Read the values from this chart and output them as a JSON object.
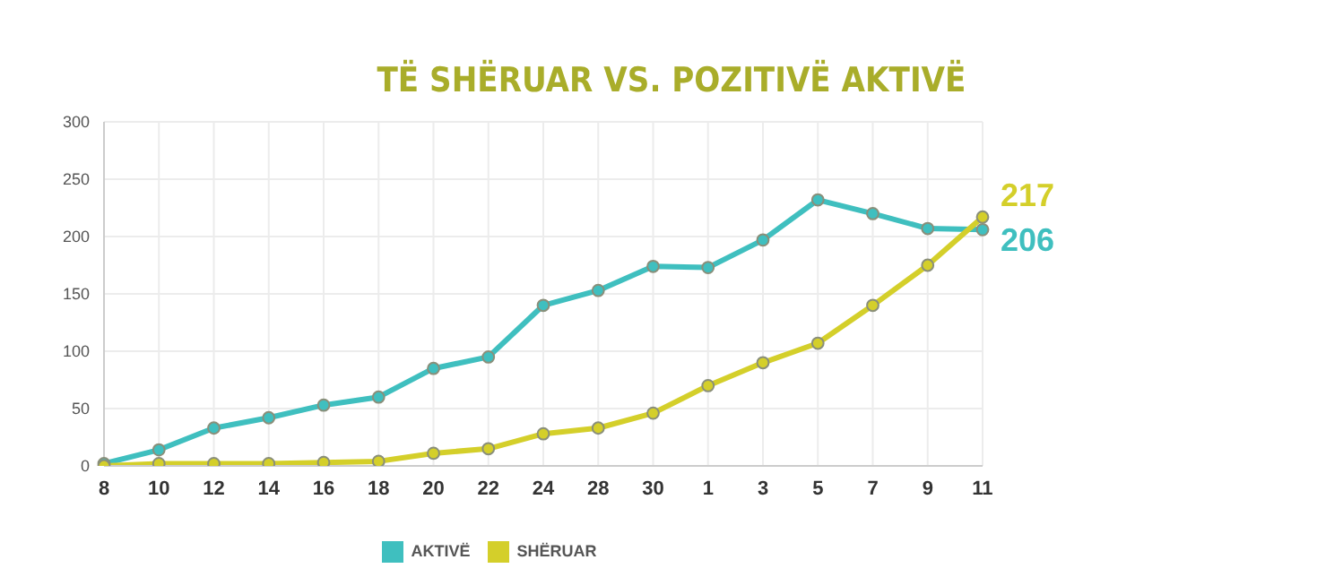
{
  "chart_data": {
    "type": "line",
    "title": "TË SHËRUAR VS. POZITIVË AKTIVË",
    "categories": [
      "8",
      "10",
      "12",
      "14",
      "16",
      "18",
      "20",
      "22",
      "24",
      "28",
      "30",
      "1",
      "3",
      "5",
      "7",
      "9",
      "11"
    ],
    "series": [
      {
        "name": "AKTIVË",
        "color": "#3fbfbf",
        "values": [
          2,
          14,
          33,
          42,
          53,
          60,
          85,
          95,
          140,
          153,
          174,
          173,
          197,
          232,
          220,
          207,
          206
        ],
        "value_labels": [
          null,
          null,
          null,
          null,
          null,
          null,
          null,
          null,
          null,
          null,
          null,
          null,
          null,
          null,
          null,
          null,
          "206"
        ]
      },
      {
        "name": "SHËRUAR",
        "color": "#d4cf2a",
        "values": [
          0,
          2,
          2,
          2,
          3,
          4,
          11,
          15,
          28,
          33,
          46,
          70,
          90,
          107,
          140,
          175,
          217
        ],
        "value_labels": [
          null,
          null,
          null,
          null,
          null,
          null,
          null,
          null,
          null,
          null,
          null,
          null,
          null,
          null,
          null,
          null,
          "217"
        ]
      }
    ],
    "ylim": [
      0,
      300
    ],
    "yticks": [
      0,
      50,
      100,
      150,
      200,
      250,
      300
    ],
    "grid": true,
    "legend": "bottom",
    "marker": "circle",
    "line_style": "solid"
  }
}
